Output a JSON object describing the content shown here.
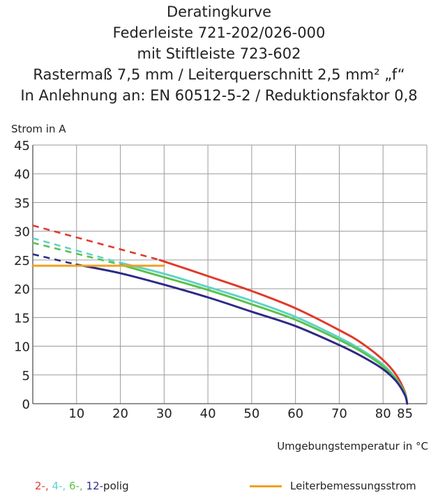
{
  "title_lines": [
    "Deratingkurve",
    "Federleiste 721-202/026-000",
    "mit Stiftleiste 723-602",
    "Rastermaß 7,5 mm / Leiterquerschnitt 2,5 mm² „f“",
    "In Anlehnung an: EN 60512-5-2 / Reduktionsfaktor 0,8"
  ],
  "chart_data": {
    "type": "line",
    "ylabel": "Strom in A",
    "xlabel": "Umgebungstemperatur in °C",
    "xlim": [
      0,
      90
    ],
    "ylim": [
      0,
      45
    ],
    "x_ticks": [
      10,
      20,
      30,
      40,
      50,
      60,
      70,
      80,
      85
    ],
    "y_ticks": [
      0,
      5,
      10,
      15,
      20,
      25,
      30,
      35,
      40,
      45
    ],
    "grid": true,
    "series": [
      {
        "name": "2-polig",
        "color": "#e03a2c",
        "dashed": [
          [
            0,
            31
          ],
          [
            29,
            25
          ]
        ],
        "solid": [
          [
            29,
            25
          ],
          [
            40,
            22.2
          ],
          [
            50,
            19.6
          ],
          [
            60,
            16.6
          ],
          [
            70,
            12.8
          ],
          [
            75,
            10.6
          ],
          [
            80,
            7.6
          ],
          [
            83,
            5
          ],
          [
            85,
            2
          ],
          [
            85.5,
            0
          ]
        ]
      },
      {
        "name": "4-polig",
        "color": "#5fd3c8",
        "dashed": [
          [
            0,
            28.8
          ],
          [
            20,
            24.5
          ]
        ],
        "solid": [
          [
            20,
            24.5
          ],
          [
            30,
            22.6
          ],
          [
            40,
            20.3
          ],
          [
            50,
            17.9
          ],
          [
            60,
            15.1
          ],
          [
            70,
            11.5
          ],
          [
            75,
            9.4
          ],
          [
            80,
            6.8
          ],
          [
            83,
            4.3
          ],
          [
            85,
            1.8
          ],
          [
            85.5,
            0
          ]
        ]
      },
      {
        "name": "6-polig",
        "color": "#58c24a",
        "dashed": [
          [
            0,
            28
          ],
          [
            20,
            24.2
          ]
        ],
        "solid": [
          [
            20,
            24.2
          ],
          [
            30,
            22
          ],
          [
            40,
            19.8
          ],
          [
            50,
            17.3
          ],
          [
            60,
            14.6
          ],
          [
            70,
            11.1
          ],
          [
            75,
            9.1
          ],
          [
            80,
            6.5
          ],
          [
            83,
            4.2
          ],
          [
            85,
            1.7
          ],
          [
            85.5,
            0
          ]
        ]
      },
      {
        "name": "12-polig",
        "color": "#2e2a86",
        "dashed": [
          [
            0,
            26
          ],
          [
            10,
            24.2
          ]
        ],
        "solid": [
          [
            10,
            24.2
          ],
          [
            20,
            22.7
          ],
          [
            30,
            20.7
          ],
          [
            40,
            18.5
          ],
          [
            50,
            16
          ],
          [
            60,
            13.5
          ],
          [
            70,
            10.2
          ],
          [
            75,
            8.3
          ],
          [
            80,
            6
          ],
          [
            83,
            3.9
          ],
          [
            85,
            1.5
          ],
          [
            85.5,
            0
          ]
        ]
      },
      {
        "name": "Leiterbemessungsstrom",
        "color": "#f0a020",
        "solid": [
          [
            0,
            24
          ],
          [
            30,
            24
          ]
        ]
      }
    ]
  },
  "legend": {
    "prefix_items": [
      {
        "text": "2-,",
        "color": "#e03a2c"
      },
      {
        "text": "4-,",
        "color": "#5fd3c8"
      },
      {
        "text": "6-,",
        "color": "#58c24a"
      },
      {
        "text": "12-",
        "color": "#2e2a86"
      }
    ],
    "suffix": "polig",
    "rated_label": "Leiterbemessungsstrom",
    "rated_color": "#f0a020"
  }
}
